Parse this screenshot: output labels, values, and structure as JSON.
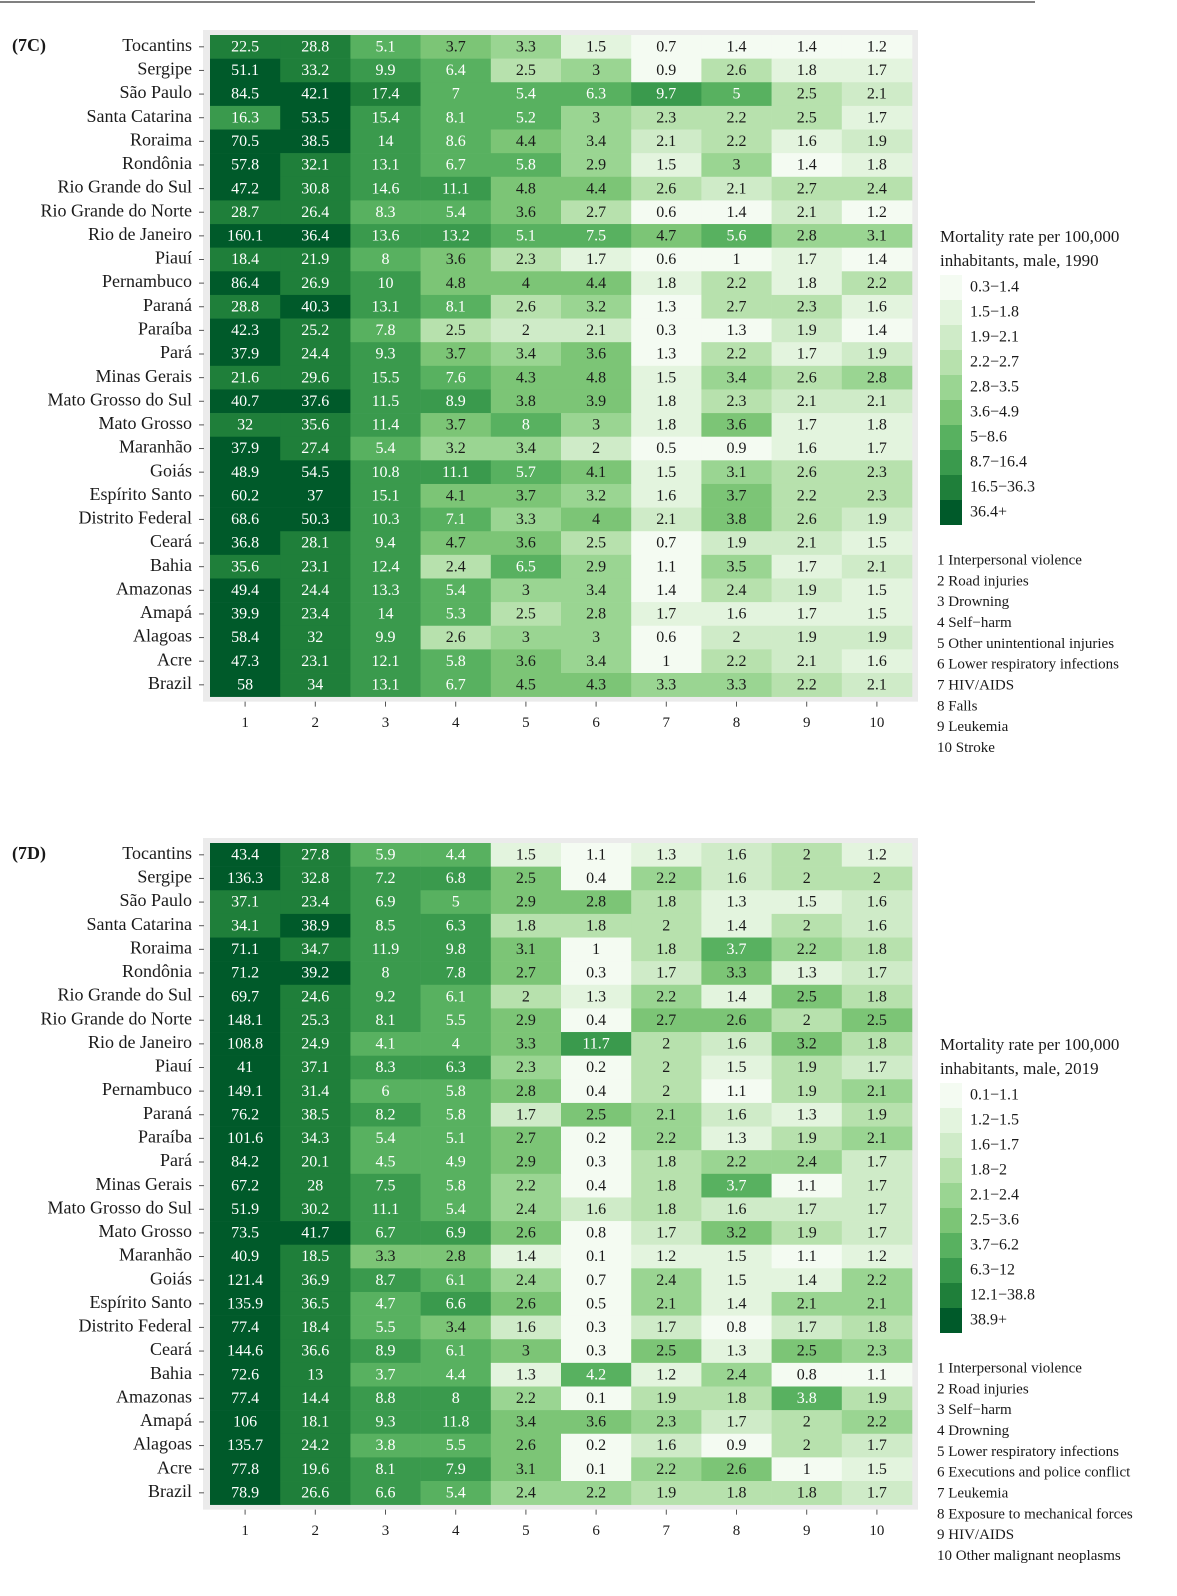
{
  "chart_data": [
    {
      "type": "heatmap",
      "panel_label": "(7C)",
      "rows": [
        "Tocantins",
        "Sergipe",
        "São Paulo",
        "Santa Catarina",
        "Roraima",
        "Rondônia",
        "Rio Grande do Sul",
        "Rio Grande do Norte",
        "Rio de Janeiro",
        "Piauí",
        "Pernambuco",
        "Paraná",
        "Paraíba",
        "Pará",
        "Minas Gerais",
        "Mato Grosso do Sul",
        "Mato Grosso",
        "Maranhão",
        "Goiás",
        "Espírito Santo",
        "Distrito Federal",
        "Ceará",
        "Bahia",
        "Amazonas",
        "Amapá",
        "Alagoas",
        "Acre",
        "Brazil"
      ],
      "columns": [
        1,
        2,
        3,
        4,
        5,
        6,
        7,
        8,
        9,
        10
      ],
      "values": [
        [
          22.5,
          28.8,
          5.1,
          3.7,
          3.3,
          1.5,
          0.7,
          1.4,
          1.4,
          1.2
        ],
        [
          51.1,
          33.2,
          9.9,
          6.4,
          2.5,
          3,
          0.9,
          2.6,
          1.8,
          1.7
        ],
        [
          84.5,
          42.1,
          17.4,
          7,
          5.4,
          6.3,
          9.7,
          5,
          2.5,
          2.1
        ],
        [
          16.3,
          53.5,
          15.4,
          8.1,
          5.2,
          3,
          2.3,
          2.2,
          2.5,
          1.7
        ],
        [
          70.5,
          38.5,
          14,
          8.6,
          4.4,
          3.4,
          2.1,
          2.2,
          1.6,
          1.9
        ],
        [
          57.8,
          32.1,
          13.1,
          6.7,
          5.8,
          2.9,
          1.5,
          3,
          1.4,
          1.8
        ],
        [
          47.2,
          30.8,
          14.6,
          11.1,
          4.8,
          4.4,
          2.6,
          2.1,
          2.7,
          2.4
        ],
        [
          28.7,
          26.4,
          8.3,
          5.4,
          3.6,
          2.7,
          0.6,
          1.4,
          2.1,
          1.2
        ],
        [
          160.1,
          36.4,
          13.6,
          13.2,
          5.1,
          7.5,
          4.7,
          5.6,
          2.8,
          3.1
        ],
        [
          18.4,
          21.9,
          8,
          3.6,
          2.3,
          1.7,
          0.6,
          1,
          1.7,
          1.4
        ],
        [
          86.4,
          26.9,
          10,
          4.8,
          4,
          4.4,
          1.8,
          2.2,
          1.8,
          2.2
        ],
        [
          28.8,
          40.3,
          13.1,
          8.1,
          2.6,
          3.2,
          1.3,
          2.7,
          2.3,
          1.6
        ],
        [
          42.3,
          25.2,
          7.8,
          2.5,
          2,
          2.1,
          0.3,
          1.3,
          1.9,
          1.4
        ],
        [
          37.9,
          24.4,
          9.3,
          3.7,
          3.4,
          3.6,
          1.3,
          2.2,
          1.7,
          1.9
        ],
        [
          21.6,
          29.6,
          15.5,
          7.6,
          4.3,
          4.8,
          1.5,
          3.4,
          2.6,
          2.8
        ],
        [
          40.7,
          37.6,
          11.5,
          8.9,
          3.8,
          3.9,
          1.8,
          2.3,
          2.1,
          2.1
        ],
        [
          32,
          35.6,
          11.4,
          3.7,
          8,
          3,
          1.8,
          3.6,
          1.7,
          1.8
        ],
        [
          37.9,
          27.4,
          5.4,
          3.2,
          3.4,
          2,
          0.5,
          0.9,
          1.6,
          1.7
        ],
        [
          48.9,
          54.5,
          10.8,
          11.1,
          5.7,
          4.1,
          1.5,
          3.1,
          2.6,
          2.3
        ],
        [
          60.2,
          37,
          15.1,
          4.1,
          3.7,
          3.2,
          1.6,
          3.7,
          2.2,
          2.3
        ],
        [
          68.6,
          50.3,
          10.3,
          7.1,
          3.3,
          4,
          2.1,
          3.8,
          2.6,
          1.9
        ],
        [
          36.8,
          28.1,
          9.4,
          4.7,
          3.6,
          2.5,
          0.7,
          1.9,
          2.1,
          1.5
        ],
        [
          35.6,
          23.1,
          12.4,
          2.4,
          6.5,
          2.9,
          1.1,
          3.5,
          1.7,
          2.1
        ],
        [
          49.4,
          24.4,
          13.3,
          5.4,
          3,
          3.4,
          1.4,
          2.4,
          1.9,
          1.5
        ],
        [
          39.9,
          23.4,
          14,
          5.3,
          2.5,
          2.8,
          1.7,
          1.6,
          1.7,
          1.5
        ],
        [
          58.4,
          32,
          9.9,
          2.6,
          3,
          3,
          0.6,
          2,
          1.9,
          1.9
        ],
        [
          47.3,
          23.1,
          12.1,
          5.8,
          3.6,
          3.4,
          1,
          2.2,
          2.1,
          1.6
        ],
        [
          58,
          34,
          13.1,
          6.7,
          4.5,
          4.3,
          3.3,
          3.3,
          2.2,
          2.1
        ]
      ],
      "legend_title": [
        "Mortality rate per 100,000",
        "inhabitants, male, 1990"
      ],
      "bins": [
        {
          "min": 0.3,
          "max": 1.4,
          "label": "0.3−1.4",
          "color": "#f4fbf2"
        },
        {
          "min": 1.5,
          "max": 1.8,
          "label": "1.5−1.8",
          "color": "#e3f4de"
        },
        {
          "min": 1.9,
          "max": 2.1,
          "label": "1.9−2.1",
          "color": "#cfebc8"
        },
        {
          "min": 2.2,
          "max": 2.7,
          "label": "2.2−2.7",
          "color": "#b7e1ad"
        },
        {
          "min": 2.8,
          "max": 3.5,
          "label": "2.8−3.5",
          "color": "#9ad592"
        },
        {
          "min": 3.6,
          "max": 4.9,
          "label": "3.6−4.9",
          "color": "#7cc576"
        },
        {
          "min": 5,
          "max": 8.6,
          "label": "5−8.6",
          "color": "#58b160"
        },
        {
          "min": 8.7,
          "max": 16.4,
          "label": "8.7−16.4",
          "color": "#3a9a4d"
        },
        {
          "min": 16.5,
          "max": 36.3,
          "label": "16.5−36.3",
          "color": "#1f7f3a"
        },
        {
          "min": 36.4,
          "label": "36.4+",
          "color": "#005a2a"
        }
      ],
      "causes": [
        "1 Interpersonal violence",
        "2 Road injuries",
        "3 Drowning",
        "4 Self−harm",
        "5 Other unintentional injuries",
        "6 Lower respiratory infections",
        "7 HIV/AIDS",
        "8 Falls",
        "9 Leukemia",
        "10 Stroke"
      ]
    },
    {
      "type": "heatmap",
      "panel_label": "(7D)",
      "rows": [
        "Tocantins",
        "Sergipe",
        "São Paulo",
        "Santa Catarina",
        "Roraima",
        "Rondônia",
        "Rio Grande do Sul",
        "Rio Grande do Norte",
        "Rio de Janeiro",
        "Piauí",
        "Pernambuco",
        "Paraná",
        "Paraíba",
        "Pará",
        "Minas Gerais",
        "Mato Grosso do Sul",
        "Mato Grosso",
        "Maranhão",
        "Goiás",
        "Espírito Santo",
        "Distrito Federal",
        "Ceará",
        "Bahia",
        "Amazonas",
        "Amapá",
        "Alagoas",
        "Acre",
        "Brazil"
      ],
      "columns": [
        1,
        2,
        3,
        4,
        5,
        6,
        7,
        8,
        9,
        10
      ],
      "values": [
        [
          43.4,
          27.8,
          5.9,
          4.4,
          1.5,
          1.1,
          1.3,
          1.6,
          2,
          1.2
        ],
        [
          136.3,
          32.8,
          7.2,
          6.8,
          2.5,
          0.4,
          2.2,
          1.6,
          2,
          2
        ],
        [
          37.1,
          23.4,
          6.9,
          5,
          2.9,
          2.8,
          1.8,
          1.3,
          1.5,
          1.6
        ],
        [
          34.1,
          38.9,
          8.5,
          6.3,
          1.8,
          1.8,
          2,
          1.4,
          2,
          1.6
        ],
        [
          71.1,
          34.7,
          11.9,
          9.8,
          3.1,
          1,
          1.8,
          3.7,
          2.2,
          1.8
        ],
        [
          71.2,
          39.2,
          8,
          7.8,
          2.7,
          0.3,
          1.7,
          3.3,
          1.3,
          1.7
        ],
        [
          69.7,
          24.6,
          9.2,
          6.1,
          2,
          1.3,
          2.2,
          1.4,
          2.5,
          1.8
        ],
        [
          148.1,
          25.3,
          8.1,
          5.5,
          2.9,
          0.4,
          2.7,
          2.6,
          2,
          2.5
        ],
        [
          108.8,
          24.9,
          4.1,
          4,
          3.3,
          11.7,
          2,
          1.6,
          3.2,
          1.8
        ],
        [
          41,
          37.1,
          8.3,
          6.3,
          2.3,
          0.2,
          2,
          1.5,
          1.9,
          1.7
        ],
        [
          149.1,
          31.4,
          6,
          5.8,
          2.8,
          0.4,
          2,
          1.1,
          1.9,
          2.1
        ],
        [
          76.2,
          38.5,
          8.2,
          5.8,
          1.7,
          2.5,
          2.1,
          1.6,
          1.3,
          1.9
        ],
        [
          101.6,
          34.3,
          5.4,
          5.1,
          2.7,
          0.2,
          2.2,
          1.3,
          1.9,
          2.1
        ],
        [
          84.2,
          20.1,
          4.5,
          4.9,
          2.9,
          0.3,
          1.8,
          2.2,
          2.4,
          1.7
        ],
        [
          67.2,
          28,
          7.5,
          5.8,
          2.2,
          0.4,
          1.8,
          3.7,
          1.1,
          1.7
        ],
        [
          51.9,
          30.2,
          11.1,
          5.4,
          2.4,
          1.6,
          1.8,
          1.6,
          1.7,
          1.7
        ],
        [
          73.5,
          41.7,
          6.7,
          6.9,
          2.6,
          0.8,
          1.7,
          3.2,
          1.9,
          1.7
        ],
        [
          40.9,
          18.5,
          3.3,
          2.8,
          1.4,
          0.1,
          1.2,
          1.5,
          1.1,
          1.2
        ],
        [
          121.4,
          36.9,
          8.7,
          6.1,
          2.4,
          0.7,
          2.4,
          1.5,
          1.4,
          2.2
        ],
        [
          135.9,
          36.5,
          4.7,
          6.6,
          2.6,
          0.5,
          2.1,
          1.4,
          2.1,
          2.1
        ],
        [
          77.4,
          18.4,
          5.5,
          3.4,
          1.6,
          0.3,
          1.7,
          0.8,
          1.7,
          1.8
        ],
        [
          144.6,
          36.6,
          8.9,
          6.1,
          3,
          0.3,
          2.5,
          1.3,
          2.5,
          2.3
        ],
        [
          72.6,
          13,
          3.7,
          4.4,
          1.3,
          4.2,
          1.2,
          2.4,
          0.8,
          1.1
        ],
        [
          77.4,
          14.4,
          8.8,
          8,
          2.2,
          0.1,
          1.9,
          1.8,
          3.8,
          1.9
        ],
        [
          106,
          18.1,
          9.3,
          11.8,
          3.4,
          3.6,
          2.3,
          1.7,
          2,
          2.2
        ],
        [
          135.7,
          24.2,
          3.8,
          5.5,
          2.6,
          0.2,
          1.6,
          0.9,
          2,
          1.7
        ],
        [
          77.8,
          19.6,
          8.1,
          7.9,
          3.1,
          0.1,
          2.2,
          2.6,
          1,
          1.5
        ],
        [
          78.9,
          26.6,
          6.6,
          5.4,
          2.4,
          2.2,
          1.9,
          1.8,
          1.8,
          1.7
        ]
      ],
      "legend_title": [
        "Mortality rate per 100,000",
        "inhabitants, male, 2019"
      ],
      "bins": [
        {
          "min": 0.1,
          "max": 1.1,
          "label": "0.1−1.1",
          "color": "#f4fbf2"
        },
        {
          "min": 1.2,
          "max": 1.5,
          "label": "1.2−1.5",
          "color": "#e3f4de"
        },
        {
          "min": 1.6,
          "max": 1.7,
          "label": "1.6−1.7",
          "color": "#cfebc8"
        },
        {
          "min": 1.8,
          "max": 2,
          "label": "1.8−2",
          "color": "#b7e1ad"
        },
        {
          "min": 2.1,
          "max": 2.4,
          "label": "2.1−2.4",
          "color": "#9ad592"
        },
        {
          "min": 2.5,
          "max": 3.6,
          "label": "2.5−3.6",
          "color": "#7cc576"
        },
        {
          "min": 3.7,
          "max": 6.2,
          "label": "3.7−6.2",
          "color": "#58b160"
        },
        {
          "min": 6.3,
          "max": 12,
          "label": "6.3−12",
          "color": "#3a9a4d"
        },
        {
          "min": 12.1,
          "max": 38.8,
          "label": "12.1−38.8",
          "color": "#1f7f3a"
        },
        {
          "min": 38.9,
          "label": "38.9+",
          "color": "#005a2a"
        }
      ],
      "causes": [
        "1 Interpersonal violence",
        "2 Road injuries",
        "3 Self−harm",
        "4 Drowning",
        "5 Lower respiratory infections",
        "6 Executions and police conflict",
        "7 Leukemia",
        "8 Exposure to mechanical forces",
        "9 HIV/AIDS",
        "10 Other malignant neoplasms"
      ]
    }
  ]
}
